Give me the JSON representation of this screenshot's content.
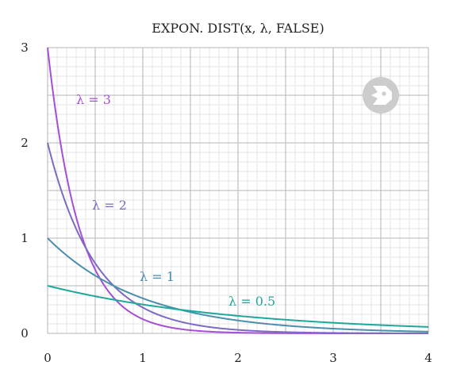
{
  "chart_data": {
    "type": "line",
    "title": "EXPON. DIST(x, λ, FALSE)",
    "xlabel": "",
    "ylabel": "",
    "xlim": [
      0,
      4
    ],
    "ylim": [
      0,
      3
    ],
    "x_ticks": [
      0,
      1,
      2,
      3,
      4
    ],
    "y_ticks": [
      0,
      1,
      2,
      3
    ],
    "x_tick_labels": [
      "0",
      "1",
      "2",
      "3",
      "4"
    ],
    "y_tick_labels": [
      "0",
      "1",
      "2",
      "3"
    ],
    "grid": true,
    "x": [
      0,
      0.25,
      0.5,
      0.75,
      1,
      1.5,
      2,
      2.5,
      3,
      3.5,
      4
    ],
    "series": [
      {
        "name": "λ = 3",
        "lambda": 3,
        "color": "#a64fd6",
        "values": [
          3.0,
          1.417,
          0.669,
          0.316,
          0.149,
          0.033,
          0.007,
          0.002,
          0.0004,
          0.0001,
          2e-05
        ]
      },
      {
        "name": "λ = 2",
        "lambda": 2,
        "color": "#7b6cc2",
        "values": [
          2.0,
          1.213,
          0.736,
          0.446,
          0.271,
          0.1,
          0.037,
          0.013,
          0.005,
          0.002,
          0.0007
        ]
      },
      {
        "name": "λ = 1",
        "lambda": 1,
        "color": "#4b8fad",
        "values": [
          1.0,
          0.779,
          0.607,
          0.472,
          0.368,
          0.223,
          0.135,
          0.082,
          0.05,
          0.03,
          0.018
        ]
      },
      {
        "name": "λ = 0.5",
        "lambda": 0.5,
        "color": "#1fa89a",
        "values": [
          0.5,
          0.441,
          0.389,
          0.344,
          0.303,
          0.236,
          0.184,
          0.143,
          0.112,
          0.087,
          0.068
        ]
      }
    ]
  },
  "watermark": {
    "icon": "logo-badge-icon",
    "color": "#c9c9c9"
  }
}
